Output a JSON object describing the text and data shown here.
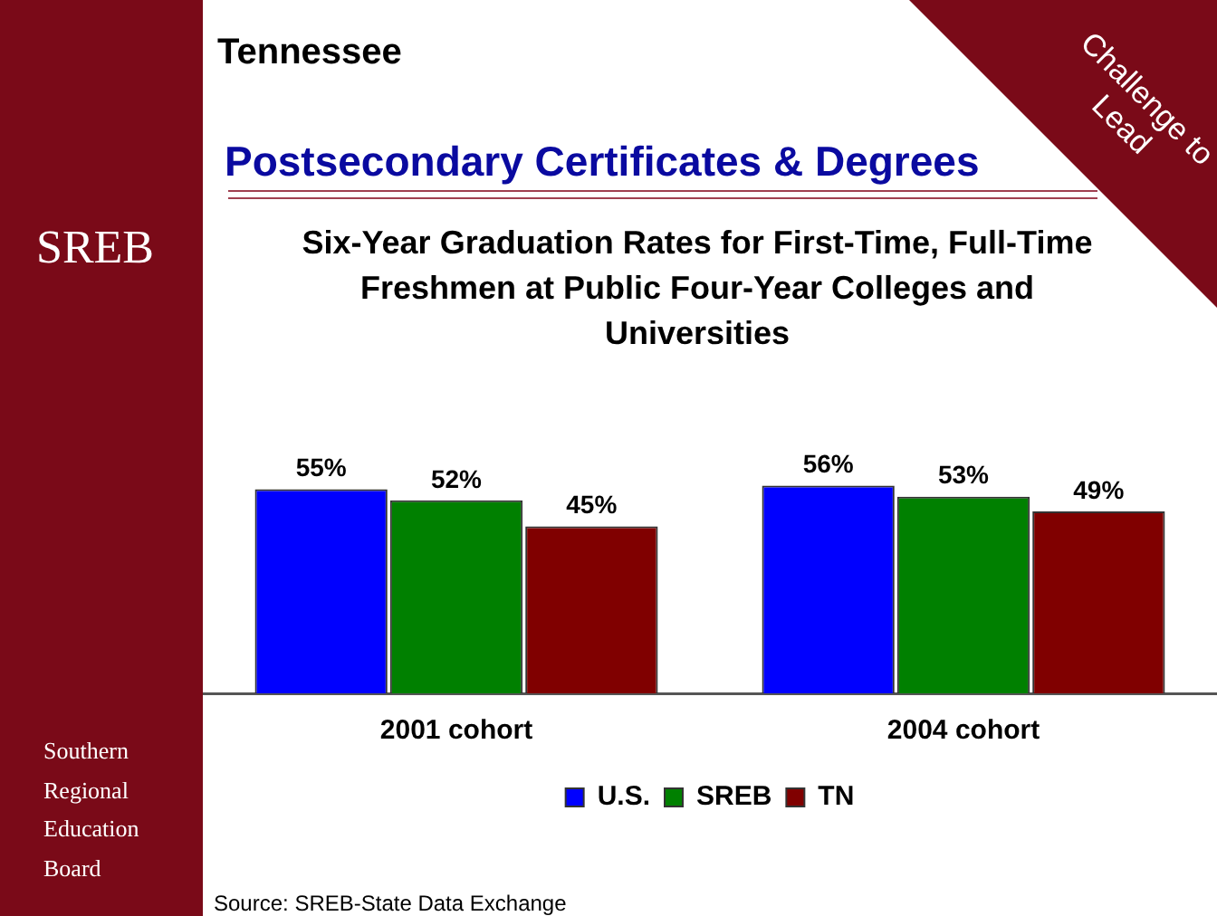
{
  "chart_data": {
    "type": "bar",
    "subtitle": "Tennessee",
    "title": "Postsecondary Certificates & Degrees",
    "annotations": [
      "Six-Year Graduation Rates for First-Time, Full-Time Freshmen at Public Four-Year Colleges and Universities",
      "SREB",
      "Southern Regional Education Board",
      "Challenge to Lead",
      "Source: SREB-State Data Exchange"
    ],
    "categories": [
      "2001 cohort",
      "2004 cohort"
    ],
    "series": [
      {
        "name": "U.S.",
        "color": "#0000ff",
        "values": [
          55,
          56
        ],
        "value_labels": [
          "55%",
          "56%"
        ]
      },
      {
        "name": "SREB",
        "color": "#008000",
        "values": [
          52,
          53
        ],
        "value_labels": [
          "52%",
          "53%"
        ]
      },
      {
        "name": "TN",
        "color": "#800000",
        "values": [
          45,
          49
        ],
        "value_labels": [
          "45%",
          "49%"
        ]
      }
    ],
    "legend": "bottom"
  }
}
